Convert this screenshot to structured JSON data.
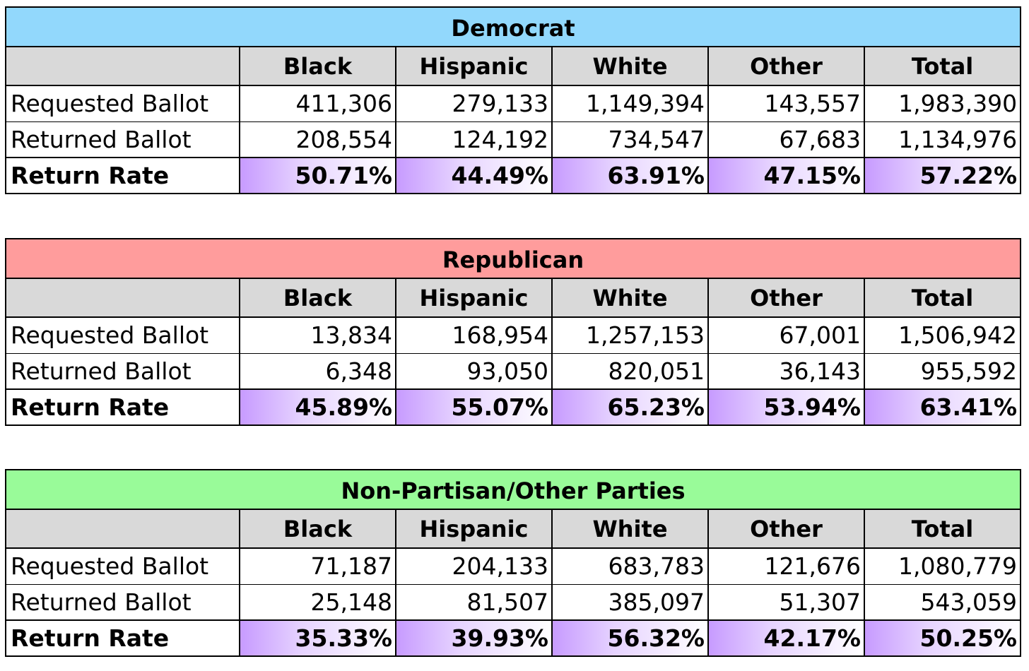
{
  "columns": [
    "Black",
    "Hispanic",
    "White",
    "Other",
    "Total"
  ],
  "row_labels": {
    "requested": "Requested Ballot",
    "returned": "Returned Ballot",
    "rate": "Return Rate"
  },
  "tables": [
    {
      "party": "Democrat",
      "color": "#92d8fc",
      "requested": [
        "411,306",
        "279,133",
        "1,149,394",
        "143,557",
        "1,983,390"
      ],
      "returned": [
        "208,554",
        "124,192",
        "734,547",
        "67,683",
        "1,134,976"
      ],
      "rate": [
        "50.71%",
        "44.49%",
        "63.91%",
        "47.15%",
        "57.22%"
      ]
    },
    {
      "party": "Republican",
      "color": "#ff9c9c",
      "requested": [
        "13,834",
        "168,954",
        "1,257,153",
        "67,001",
        "1,506,942"
      ],
      "returned": [
        "6,348",
        "93,050",
        "820,051",
        "36,143",
        "955,592"
      ],
      "rate": [
        "45.89%",
        "55.07%",
        "65.23%",
        "53.94%",
        "63.41%"
      ]
    },
    {
      "party": "Non-Partisan/Other Parties",
      "color": "#99fb99",
      "requested": [
        "71,187",
        "204,133",
        "683,783",
        "121,676",
        "1,080,779"
      ],
      "returned": [
        "25,148",
        "81,507",
        "385,097",
        "51,307",
        "543,059"
      ],
      "rate": [
        "35.33%",
        "39.93%",
        "56.32%",
        "42.17%",
        "50.25%"
      ]
    }
  ]
}
